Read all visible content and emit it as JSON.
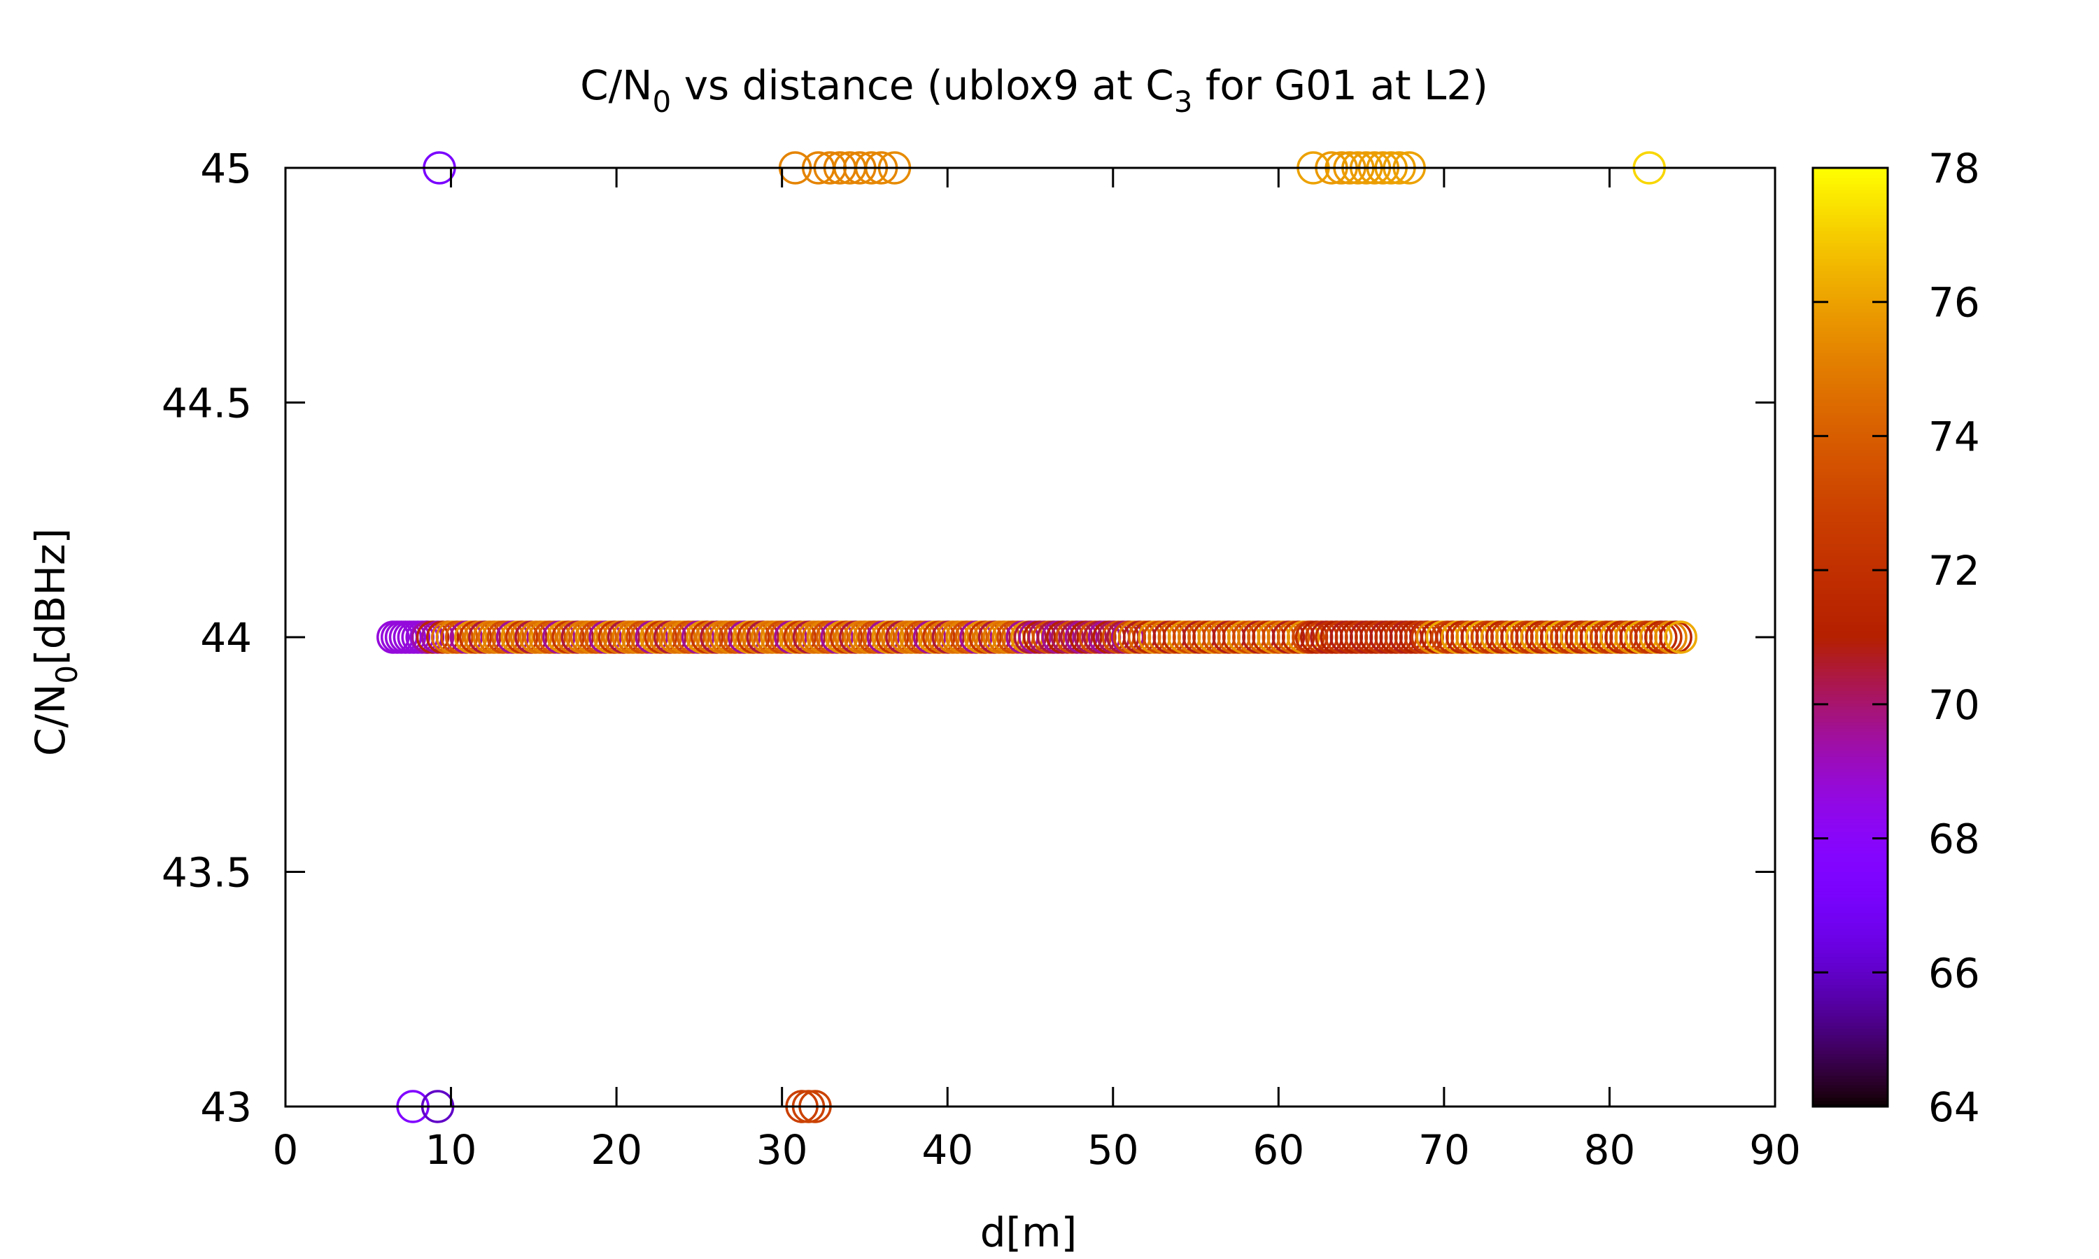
{
  "chart_data": {
    "type": "scatter",
    "title": {
      "main": "C/N",
      "sub1": "0",
      "mid": " vs distance (ublox9 at C",
      "sub2": "3",
      "end": " for G01 at L2)"
    },
    "xlabel": "d[m]",
    "ylabel": {
      "main": "C/N",
      "sub": "0",
      "end": "[dBHz]"
    },
    "xlim": [
      0,
      90
    ],
    "ylim": [
      43,
      45
    ],
    "xticks": [
      "0",
      "10",
      "20",
      "30",
      "40",
      "50",
      "60",
      "70",
      "80",
      "90"
    ],
    "yticks": [
      "43",
      "43.5",
      "44",
      "44.5",
      "45"
    ],
    "grid": false,
    "marker": "open-circle",
    "colorbar": {
      "range": [
        64,
        78
      ],
      "ticks": [
        "64",
        "66",
        "68",
        "70",
        "72",
        "74",
        "76",
        "78"
      ],
      "palette": "gnuplot"
    },
    "series_y45": [
      [
        9.3,
        67.2
      ],
      [
        30.8,
        75.2
      ],
      [
        32.2,
        75.2
      ],
      [
        32.9,
        75.2
      ],
      [
        33.5,
        75.2
      ],
      [
        34.1,
        75.3
      ],
      [
        34.7,
        75.2
      ],
      [
        35.4,
        75.3
      ],
      [
        36.0,
        75.3
      ],
      [
        36.8,
        75.4
      ],
      [
        62.1,
        76.0
      ],
      [
        63.2,
        75.8
      ],
      [
        63.8,
        75.8
      ],
      [
        64.3,
        75.8
      ],
      [
        64.8,
        75.9
      ],
      [
        65.3,
        75.9
      ],
      [
        65.8,
        75.9
      ],
      [
        66.3,
        75.9
      ],
      [
        66.8,
        76.0
      ],
      [
        67.3,
        76.0
      ],
      [
        67.9,
        76.0
      ],
      [
        82.4,
        77.2
      ]
    ],
    "series_y43": [
      [
        7.7,
        67.6
      ],
      [
        9.2,
        66.0
      ],
      [
        31.2,
        72.8
      ],
      [
        31.6,
        72.9
      ],
      [
        32.0,
        72.9
      ]
    ],
    "series_y44_segments": [
      {
        "x_start": 6.5,
        "x_end": 8.5,
        "step": 0.25,
        "colors": [
          68.7
        ]
      },
      {
        "x_start": 8.6,
        "x_end": 9.8,
        "step": 0.3,
        "colors": [
          69.5,
          71.5
        ]
      },
      {
        "x_start": 9.8,
        "x_end": 45.0,
        "step": 0.28,
        "colors": [
          74.6,
          75.2,
          73.4,
          74.0,
          69.6,
          75.6,
          72.4,
          74.8,
          70.5,
          75.0
        ]
      },
      {
        "x_start": 45.0,
        "x_end": 51.0,
        "step": 0.28,
        "colors": [
          70.5,
          69.6,
          71.0,
          70.2,
          73.5
        ]
      },
      {
        "x_start": 51.0,
        "x_end": 62.0,
        "step": 0.3,
        "colors": [
          73.2,
          75.0,
          70.8,
          74.2,
          71.6,
          75.6
        ]
      },
      {
        "x_start": 62.0,
        "x_end": 69.0,
        "step": 0.3,
        "colors": [
          72.0,
          71.0,
          72.6,
          70.8
        ]
      },
      {
        "x_start": 69.0,
        "x_end": 84.3,
        "step": 0.3,
        "colors": [
          72.4,
          75.4,
          71.2,
          76.2,
          73.0,
          72.2,
          75.8,
          71.6
        ]
      }
    ]
  }
}
